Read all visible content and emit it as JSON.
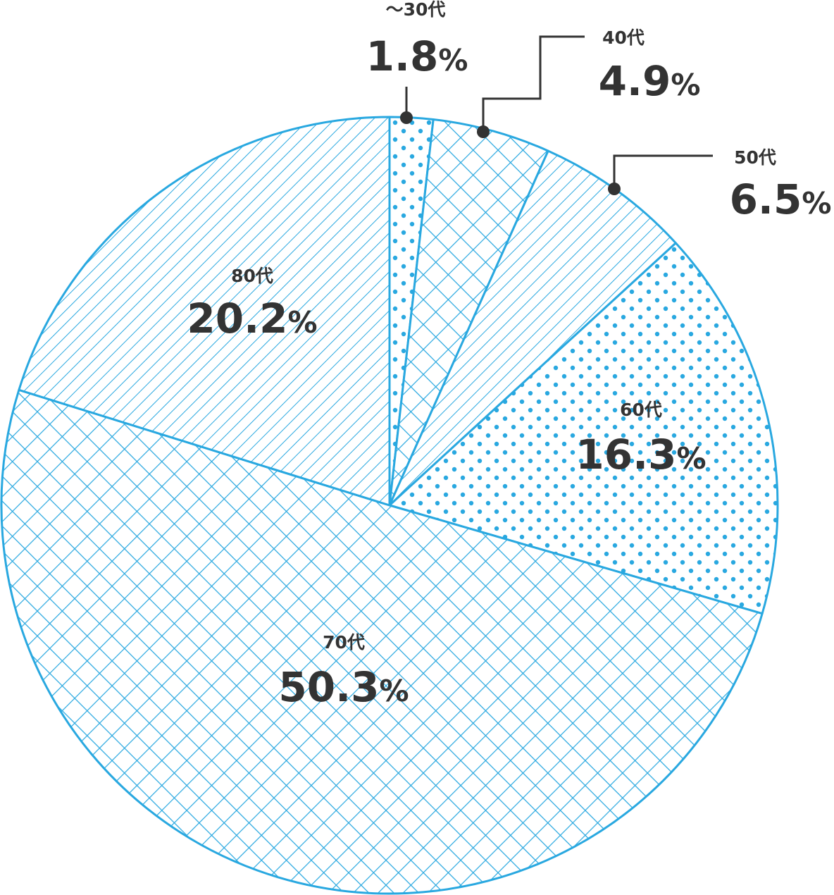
{
  "chart_data": {
    "type": "pie",
    "title": "",
    "start": "top",
    "direction": "clockwise",
    "colors": {
      "stroke": "#29a8e0",
      "text": "#333333",
      "background": "#ffffff"
    },
    "slices": [
      {
        "label": "～30代",
        "value": 1.8,
        "value_text": "1.8",
        "pattern": "dots",
        "label_position": "callout"
      },
      {
        "label": "40代",
        "value": 4.9,
        "value_text": "4.9",
        "pattern": "crosshatch",
        "label_position": "callout"
      },
      {
        "label": "50代",
        "value": 6.5,
        "value_text": "6.5",
        "pattern": "diagonal",
        "label_position": "callout"
      },
      {
        "label": "60代",
        "value": 16.3,
        "value_text": "16.3",
        "pattern": "dots",
        "label_position": "inside"
      },
      {
        "label": "70代",
        "value": 50.3,
        "value_text": "50.3",
        "pattern": "crosshatch",
        "label_position": "inside"
      },
      {
        "label": "80代",
        "value": 20.2,
        "value_text": "20.2",
        "pattern": "diagonal",
        "label_position": "inside"
      }
    ],
    "unit": "%"
  }
}
